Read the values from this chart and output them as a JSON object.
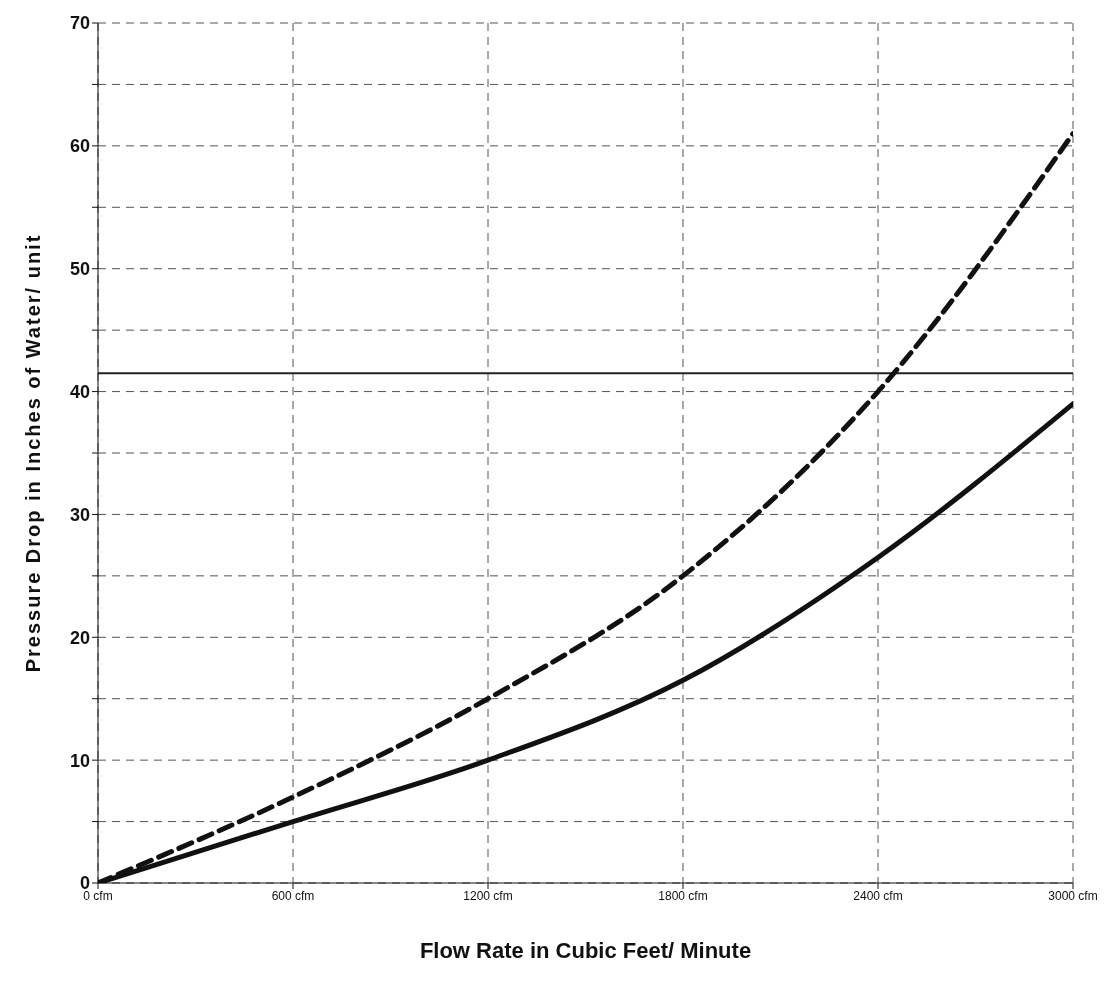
{
  "chart_data": {
    "type": "line",
    "xlabel": "Flow Rate in Cubic Feet/ Minute",
    "ylabel": "Pressure Drop in Inches of Water/ unit",
    "x": [
      0,
      600,
      1200,
      1800,
      2400,
      3000
    ],
    "series": [
      {
        "color": "#111111",
        "line_style": "solid",
        "values": [
          0,
          5,
          10,
          16.5,
          26.5,
          39
        ]
      },
      {
        "color": "#111111",
        "line_style": "dashed",
        "values": [
          0,
          7,
          15,
          25,
          40,
          61
        ]
      }
    ],
    "xlim": [
      0,
      3000
    ],
    "xticks": [
      {
        "value": 0,
        "label": "0 cfm"
      },
      {
        "value": 600,
        "label": "600 cfm"
      },
      {
        "value": 1200,
        "label": "1200 cfm"
      },
      {
        "value": 1800,
        "label": "1800 cfm"
      },
      {
        "value": 2400,
        "label": "2400 cfm"
      },
      {
        "value": 3000,
        "label": "3000 cfm"
      }
    ],
    "ylim": [
      0,
      70
    ],
    "yticks": [
      0,
      {
        "value": 5,
        "label": null
      },
      10,
      {
        "value": 15,
        "label": null
      },
      20,
      {
        "value": 25,
        "label": null
      },
      30,
      {
        "value": 35,
        "label": null
      },
      40,
      {
        "value": 45,
        "label": null
      },
      50,
      {
        "value": 55,
        "label": null
      },
      60,
      {
        "value": 65,
        "label": null
      },
      70
    ],
    "ref_lines": [
      {
        "axis": "y",
        "value": 41.5,
        "color": "#222222",
        "line_style": "solid"
      }
    ],
    "grid": true,
    "marker": "none"
  }
}
